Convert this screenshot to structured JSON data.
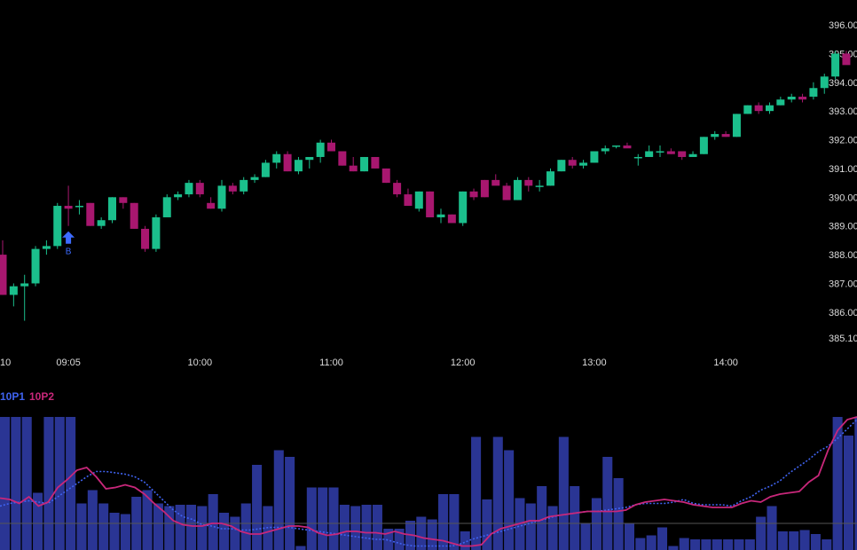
{
  "colors": {
    "background": "#000000",
    "up": "#1bbf8c",
    "down": "#a8176f",
    "volume": "#2a3594",
    "op1": "#3f63f0",
    "op2": "#c8277a",
    "marker": "#3d6cff",
    "baseline": "#555555"
  },
  "chart_data": [
    {
      "type": "candlestick",
      "y_ticks": [
        "396.00",
        "395.00",
        "394.00",
        "393.00",
        "392.00",
        "391.00",
        "390.00",
        "389.00",
        "388.00",
        "387.00",
        "386.00",
        "385.10"
      ],
      "y_tick_values": [
        396,
        395,
        394,
        393,
        392,
        391,
        390,
        389,
        388,
        387,
        386,
        385.1
      ],
      "x_ticks": [
        "10",
        "09:05",
        "10:00",
        "11:00",
        "12:00",
        "13:00",
        "14:00"
      ],
      "x_tick_index": [
        0,
        6,
        18,
        30,
        42,
        54,
        66
      ],
      "ylim": [
        384.9,
        396.5
      ],
      "marker": {
        "index": 6,
        "label": "B"
      },
      "candles": [
        [
          388.0,
          388.5,
          386.6,
          386.6
        ],
        [
          386.6,
          387.0,
          386.2,
          386.9
        ],
        [
          386.9,
          387.3,
          385.7,
          387.0
        ],
        [
          387.0,
          388.3,
          386.9,
          388.2
        ],
        [
          388.2,
          388.5,
          388.0,
          388.3
        ],
        [
          388.3,
          389.8,
          388.2,
          389.7
        ],
        [
          389.7,
          390.4,
          389.0,
          389.6
        ],
        [
          389.7,
          389.9,
          389.4,
          389.7
        ],
        [
          389.8,
          389.8,
          389.0,
          389.0
        ],
        [
          389.0,
          389.3,
          388.9,
          389.2
        ],
        [
          389.2,
          390.0,
          389.1,
          390.0
        ],
        [
          390.0,
          390.0,
          389.6,
          389.8
        ],
        [
          389.8,
          389.8,
          388.9,
          388.9
        ],
        [
          388.9,
          389.0,
          388.1,
          388.2
        ],
        [
          388.2,
          389.4,
          388.1,
          389.3
        ],
        [
          389.3,
          390.1,
          389.3,
          390.0
        ],
        [
          390.0,
          390.2,
          389.9,
          390.1
        ],
        [
          390.1,
          390.6,
          390.0,
          390.5
        ],
        [
          390.5,
          390.6,
          390.0,
          390.1
        ],
        [
          389.8,
          390.0,
          389.6,
          389.6
        ],
        [
          389.6,
          390.6,
          389.5,
          390.4
        ],
        [
          390.4,
          390.5,
          390.1,
          390.2
        ],
        [
          390.2,
          390.7,
          390.1,
          390.6
        ],
        [
          390.6,
          390.8,
          390.5,
          390.7
        ],
        [
          390.7,
          391.3,
          390.7,
          391.2
        ],
        [
          391.2,
          391.6,
          391.0,
          391.5
        ],
        [
          391.5,
          391.6,
          390.9,
          390.9
        ],
        [
          390.9,
          391.4,
          390.8,
          391.3
        ],
        [
          391.3,
          391.3,
          391.0,
          391.4
        ],
        [
          391.4,
          392.0,
          391.2,
          391.9
        ],
        [
          391.9,
          392.0,
          391.6,
          391.6
        ],
        [
          391.6,
          391.6,
          391.1,
          391.1
        ],
        [
          391.1,
          391.4,
          390.9,
          390.9
        ],
        [
          390.9,
          391.4,
          390.9,
          391.4
        ],
        [
          391.4,
          391.4,
          391.0,
          391.0
        ],
        [
          391.0,
          391.0,
          390.5,
          390.5
        ],
        [
          390.5,
          390.6,
          390.0,
          390.1
        ],
        [
          390.1,
          390.3,
          389.7,
          389.7
        ],
        [
          389.6,
          390.2,
          389.5,
          390.2
        ],
        [
          390.2,
          390.2,
          389.3,
          389.3
        ],
        [
          389.3,
          389.6,
          389.1,
          389.4
        ],
        [
          389.4,
          389.4,
          389.1,
          389.1
        ],
        [
          389.1,
          390.2,
          389.0,
          390.2
        ],
        [
          390.2,
          390.3,
          389.9,
          390.0
        ],
        [
          390.6,
          390.6,
          390.0,
          390.0
        ],
        [
          390.6,
          390.8,
          390.5,
          390.4
        ],
        [
          390.4,
          390.5,
          389.9,
          389.9
        ],
        [
          389.9,
          390.7,
          389.9,
          390.6
        ],
        [
          390.6,
          390.7,
          390.2,
          390.4
        ],
        [
          390.4,
          390.6,
          390.2,
          390.4
        ],
        [
          390.4,
          391.0,
          390.4,
          390.9
        ],
        [
          390.9,
          391.3,
          390.9,
          391.3
        ],
        [
          391.3,
          391.4,
          391.0,
          391.1
        ],
        [
          391.1,
          391.3,
          391.0,
          391.2
        ],
        [
          391.2,
          391.6,
          391.2,
          391.6
        ],
        [
          391.6,
          391.8,
          391.5,
          391.7
        ],
        [
          391.8,
          391.8,
          391.7,
          391.8
        ],
        [
          391.8,
          391.9,
          391.8,
          391.7
        ],
        [
          391.4,
          391.5,
          391.1,
          391.4
        ],
        [
          391.4,
          391.8,
          391.4,
          391.6
        ],
        [
          391.6,
          391.8,
          391.4,
          391.6
        ],
        [
          391.6,
          391.7,
          391.5,
          391.5
        ],
        [
          391.6,
          391.6,
          391.3,
          391.4
        ],
        [
          391.4,
          391.6,
          391.4,
          391.5
        ],
        [
          391.5,
          392.1,
          391.5,
          392.1
        ],
        [
          392.1,
          392.3,
          392.0,
          392.2
        ],
        [
          392.2,
          392.3,
          392.1,
          392.1
        ],
        [
          392.1,
          392.9,
          392.1,
          392.9
        ],
        [
          392.9,
          393.2,
          392.9,
          393.2
        ],
        [
          393.2,
          393.3,
          392.9,
          393.0
        ],
        [
          393.0,
          393.3,
          392.9,
          393.2
        ],
        [
          393.2,
          393.5,
          393.2,
          393.4
        ],
        [
          393.4,
          393.6,
          393.3,
          393.5
        ],
        [
          393.5,
          393.6,
          393.3,
          393.4
        ],
        [
          393.5,
          394.0,
          393.4,
          393.8
        ],
        [
          393.8,
          394.3,
          393.6,
          394.2
        ],
        [
          394.2,
          395.1,
          394.1,
          395.0
        ],
        [
          395.0,
          395.1,
          394.7,
          394.6
        ]
      ]
    },
    {
      "type": "bar",
      "legend": [
        "10P1",
        "10P2"
      ],
      "ylim": [
        0,
        100
      ],
      "baseline": 20,
      "volume": [
        100,
        100,
        100,
        43,
        100,
        100,
        100,
        35,
        45,
        35,
        28,
        27,
        40,
        45,
        35,
        33,
        34,
        34,
        33,
        42,
        28,
        25,
        35,
        64,
        33,
        75,
        70,
        3,
        47,
        47,
        47,
        34,
        33,
        34,
        34,
        16,
        16,
        22,
        25,
        23,
        42,
        42,
        14,
        85,
        38,
        85,
        75,
        39,
        35,
        48,
        33,
        85,
        48,
        20,
        39,
        70,
        54,
        20,
        9,
        11,
        17,
        3,
        9,
        8,
        8,
        8,
        8,
        8,
        8,
        25,
        33,
        14,
        14,
        15,
        12,
        8,
        100,
        86,
        100,
        100,
        33
      ],
      "op1": [
        33,
        35,
        36,
        37,
        36,
        35,
        40,
        45,
        50,
        55,
        59,
        59,
        58,
        57,
        55,
        51,
        44,
        37,
        30,
        25,
        23,
        19,
        18,
        16,
        16,
        15,
        15,
        16,
        17,
        17,
        17,
        16,
        15,
        14,
        13,
        12,
        11,
        10,
        9,
        8,
        8,
        6,
        4,
        3,
        3,
        3,
        3,
        3,
        5,
        8,
        10,
        12,
        14,
        16,
        18,
        20,
        22,
        24,
        26,
        27,
        28,
        29,
        29,
        30,
        31,
        32,
        34,
        35,
        35,
        35,
        36,
        38,
        35,
        34,
        34,
        34,
        33,
        37,
        40,
        45,
        48,
        52,
        58,
        63,
        68,
        74,
        78,
        84,
        91,
        98
      ],
      "op2": [
        39,
        38,
        35,
        40,
        33,
        36,
        47,
        53,
        60,
        62,
        55,
        46,
        47,
        49,
        47,
        42,
        35,
        29,
        22,
        19,
        18,
        18,
        20,
        20,
        18,
        14,
        12,
        12,
        14,
        16,
        18,
        18,
        17,
        13,
        11,
        12,
        14,
        14,
        13,
        13,
        12,
        14,
        12,
        11,
        9,
        8,
        7,
        5,
        3,
        3,
        4,
        12,
        16,
        18,
        20,
        22,
        22,
        25,
        26,
        27,
        28,
        29,
        29,
        29,
        29,
        30,
        34,
        36,
        37,
        38,
        37,
        36,
        34,
        33,
        32,
        32,
        32,
        35,
        37,
        36,
        40,
        42,
        43,
        44,
        51,
        56,
        75,
        90,
        98,
        100
      ]
    }
  ]
}
